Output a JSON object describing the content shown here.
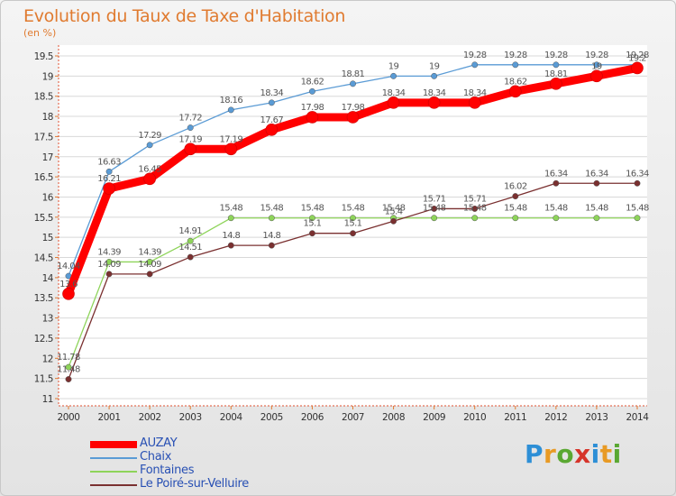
{
  "title": "Evolution du Taux de Taxe d'Habitation",
  "unit_label": "(en %)",
  "logo": {
    "text": "Proxiti",
    "letters": [
      "P",
      "r",
      "o",
      "x",
      "i",
      "t",
      "i"
    ]
  },
  "chart_data": {
    "type": "line",
    "title": "Evolution du Taux de Taxe d'Habitation",
    "ylabel": "(en %)",
    "xlabel": "",
    "x": [
      "2000",
      "2001",
      "2002",
      "2003",
      "2004",
      "2005",
      "2006",
      "2007",
      "2008",
      "2009",
      "2010",
      "2011",
      "2012",
      "2013",
      "2014"
    ],
    "ylim": [
      11,
      19.5
    ],
    "yticks": [
      "11",
      "11.5",
      "12",
      "12.5",
      "13",
      "13.5",
      "14",
      "14.5",
      "15",
      "15.5",
      "16",
      "16.5",
      "17",
      "17.5",
      "18",
      "18.5",
      "19",
      "19.5"
    ],
    "grid": "horizontal",
    "legend_position": "bottom-left",
    "series": [
      {
        "name": "Chaix",
        "color": "#5a9bd5",
        "values": [
          14.04,
          16.63,
          17.29,
          17.72,
          18.16,
          18.34,
          18.62,
          18.81,
          19,
          19,
          19.28,
          19.28,
          19.28,
          19.28,
          19.28
        ],
        "labels": [
          "14.04",
          "16.63",
          "17.29",
          "17.72",
          "18.16",
          "18.34",
          "18.62",
          "18.81",
          "19",
          "19",
          "19.28",
          "19.28",
          "19.28",
          "19.28",
          "19.28"
        ]
      },
      {
        "name": "Fontaines",
        "color": "#8ed45a",
        "values": [
          11.78,
          14.39,
          14.39,
          14.91,
          15.48,
          15.48,
          15.48,
          15.48,
          15.48,
          15.48,
          15.48,
          15.48,
          15.48,
          15.48,
          15.48
        ],
        "labels": [
          "11.78",
          "14.39",
          "14.39",
          "14.91",
          "15.48",
          "15.48",
          "15.48",
          "15.48",
          "15.48",
          "15.48",
          "15.48",
          "15.48",
          "15.48",
          "15.48",
          "15.48"
        ]
      },
      {
        "name": "Le Poiré-sur-Velluire",
        "color": "#7a3030",
        "values": [
          11.48,
          14.09,
          14.09,
          14.51,
          14.8,
          14.8,
          15.1,
          15.1,
          15.4,
          15.71,
          15.71,
          16.02,
          16.34,
          16.34,
          16.34
        ],
        "labels": [
          "11.48",
          "14.09",
          "14.09",
          "14.51",
          "14.8",
          "14.8",
          "15.1",
          "15.1",
          "15.4",
          "15.71",
          "15.71",
          "16.02",
          "16.34",
          "16.34",
          "16.34"
        ]
      },
      {
        "name": "AUZAY",
        "color": "#ff0000",
        "values": [
          13.6,
          16.21,
          16.45,
          17.19,
          17.19,
          17.67,
          17.98,
          17.98,
          18.34,
          18.34,
          18.34,
          18.62,
          18.81,
          19,
          19.2
        ],
        "labels": [
          "13.6",
          "16.21",
          "16.45",
          "17.19",
          "17.19",
          "17.67",
          "17.98",
          "17.98",
          "18.34",
          "18.34",
          "18.34",
          "18.62",
          "18.81",
          "19",
          "19.2"
        ]
      }
    ],
    "legend": [
      {
        "name": "AUZAY",
        "color": "#ff0000"
      },
      {
        "name": "Chaix",
        "color": "#5a9bd5"
      },
      {
        "name": "Fontaines",
        "color": "#8ed45a"
      },
      {
        "name": "Le Poiré-sur-Velluire",
        "color": "#7a3030"
      }
    ]
  }
}
